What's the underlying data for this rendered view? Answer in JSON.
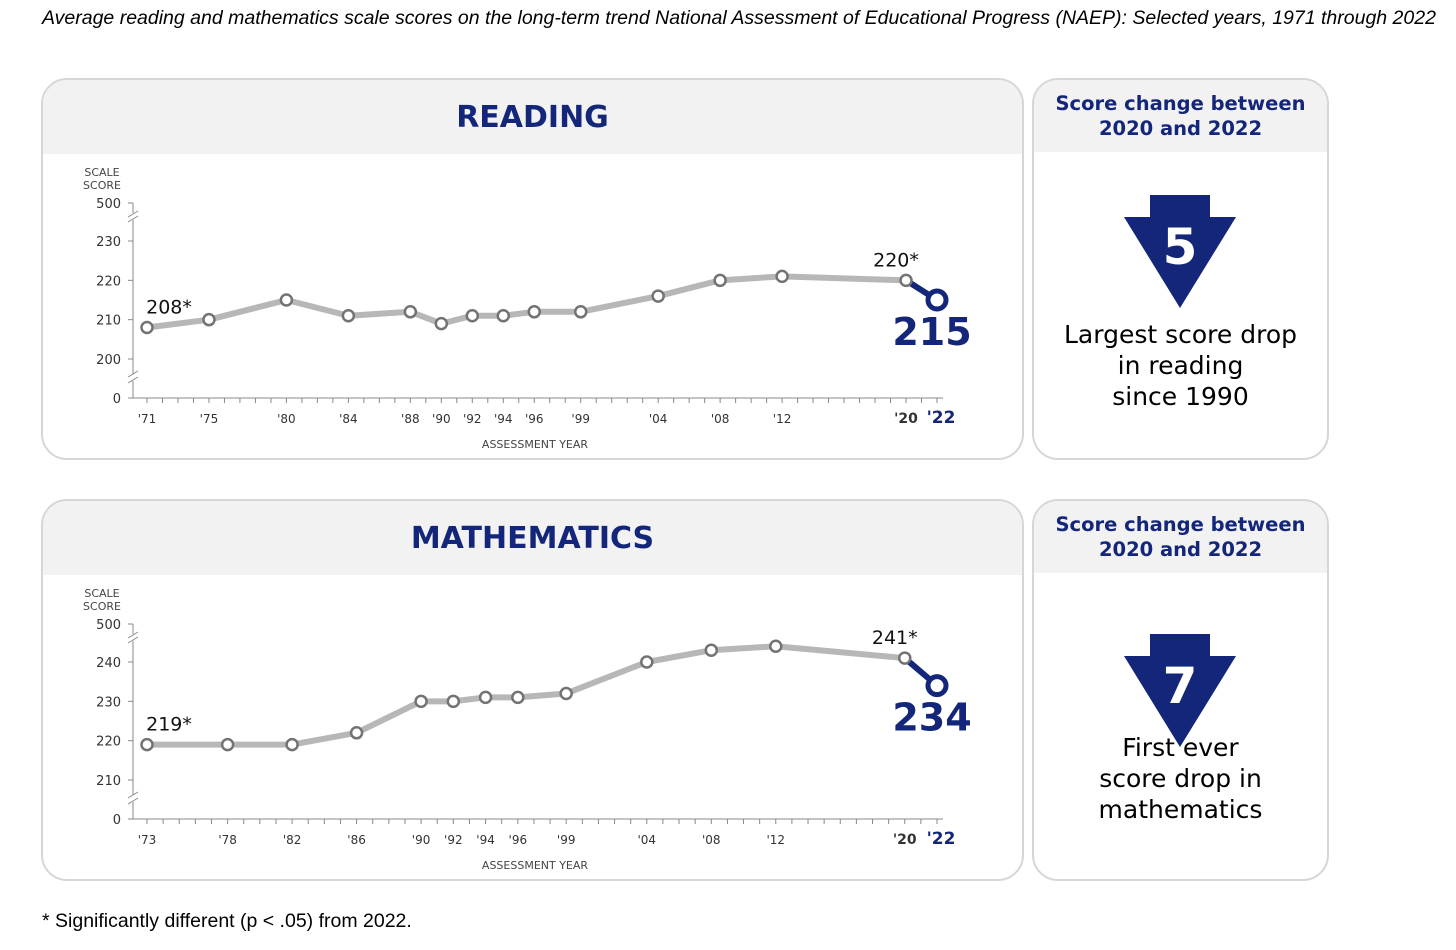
{
  "page_title": "Average reading and mathematics scale scores on the long-term trend National Assessment of Educational Progress (NAEP): Selected years, 1971 through 2022",
  "footnote": "* Significantly different (p < .05) from 2022.",
  "colors": {
    "line": "#b7b7b7",
    "marker_edge": "#737373",
    "accent": "#13267a",
    "panel_border": "#d6d6d6",
    "header_bg": "#f2f2f2"
  },
  "reading": {
    "title": "READING",
    "side_heading": "Score change between 2020 and 2022",
    "change_value": "5",
    "change_icon": "down-arrow-icon",
    "change_text": [
      "Largest score drop",
      "in reading",
      "since 1990"
    ]
  },
  "math": {
    "title": "MATHEMATICS",
    "side_heading": "Score change between 2020 and 2022",
    "change_value": "7",
    "change_icon": "down-arrow-icon",
    "change_text": [
      "First ever",
      "score drop in",
      "mathematics"
    ]
  },
  "chart_data": [
    {
      "type": "line",
      "title": "READING",
      "ylabel": "SCALE SCORE",
      "xlabel": "ASSESSMENT YEAR",
      "ylim": [
        200,
        230
      ],
      "y_ticks": [
        "0",
        "200",
        "210",
        "220",
        "230",
        "500"
      ],
      "axis_break": true,
      "x_years": [
        1971,
        1975,
        1980,
        1984,
        1988,
        1990,
        1992,
        1994,
        1996,
        1999,
        2004,
        2008,
        2012,
        2020,
        2022
      ],
      "x_labels": [
        "'71",
        "'75",
        "'80",
        "'84",
        "'88",
        "'90",
        "'92",
        "'94",
        "'96",
        "'99",
        "'04",
        "'08",
        "'12",
        "'20",
        "'22"
      ],
      "values": [
        208,
        210,
        215,
        211,
        212,
        209,
        211,
        211,
        212,
        212,
        216,
        220,
        221,
        220,
        215
      ],
      "annotations": [
        {
          "index": 0,
          "label": "208*"
        },
        {
          "index": 13,
          "label": "220*"
        },
        {
          "index": 14,
          "label": "215",
          "highlight": true
        }
      ]
    },
    {
      "type": "line",
      "title": "MATHEMATICS",
      "ylabel": "SCALE SCORE",
      "xlabel": "ASSESSMENT YEAR",
      "ylim": [
        210,
        240
      ],
      "y_ticks": [
        "0",
        "210",
        "220",
        "230",
        "240",
        "500"
      ],
      "axis_break": true,
      "x_years": [
        1973,
        1978,
        1982,
        1986,
        1990,
        1992,
        1994,
        1996,
        1999,
        2004,
        2008,
        2012,
        2020,
        2022
      ],
      "x_labels": [
        "'73",
        "'78",
        "'82",
        "'86",
        "'90",
        "'92",
        "'94",
        "'96",
        "'99",
        "'04",
        "'08",
        "'12",
        "'20",
        "'22"
      ],
      "values": [
        219,
        219,
        219,
        222,
        230,
        230,
        231,
        231,
        232,
        240,
        243,
        244,
        241,
        234
      ],
      "annotations": [
        {
          "index": 0,
          "label": "219*"
        },
        {
          "index": 12,
          "label": "241*"
        },
        {
          "index": 13,
          "label": "234",
          "highlight": true
        }
      ]
    }
  ]
}
